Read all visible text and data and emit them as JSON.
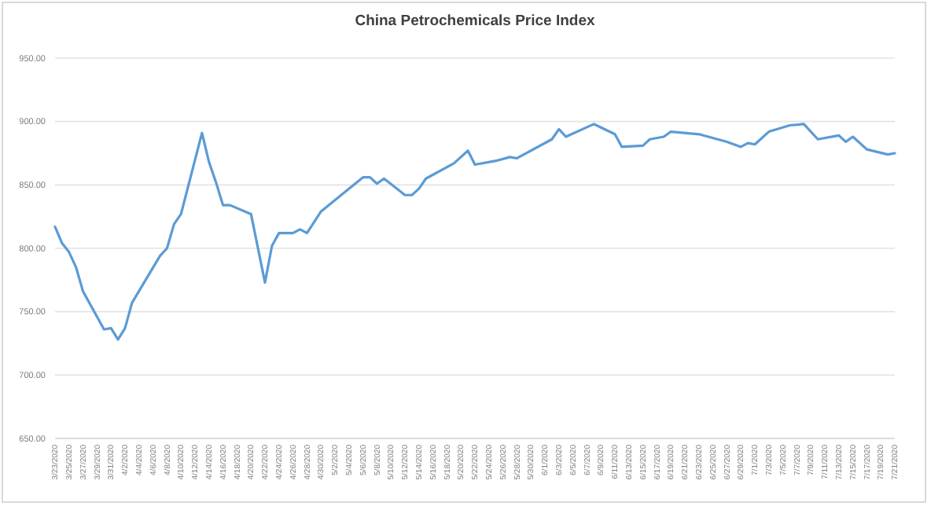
{
  "chart_data": {
    "type": "line",
    "title": "China Petrochemicals Price Index",
    "x": [
      "2020-03-23",
      "2020-03-24",
      "2020-03-25",
      "2020-03-26",
      "2020-03-27",
      "2020-03-30",
      "2020-03-31",
      "2020-04-01",
      "2020-04-02",
      "2020-04-03",
      "2020-04-07",
      "2020-04-08",
      "2020-04-09",
      "2020-04-10",
      "2020-04-13",
      "2020-04-14",
      "2020-04-15",
      "2020-04-16",
      "2020-04-17",
      "2020-04-20",
      "2020-04-22",
      "2020-04-23",
      "2020-04-24",
      "2020-04-26",
      "2020-04-27",
      "2020-04-28",
      "2020-04-30",
      "2020-05-06",
      "2020-05-07",
      "2020-05-08",
      "2020-05-09",
      "2020-05-12",
      "2020-05-13",
      "2020-05-14",
      "2020-05-15",
      "2020-05-19",
      "2020-05-21",
      "2020-05-22",
      "2020-05-25",
      "2020-05-27",
      "2020-05-28",
      "2020-06-02",
      "2020-06-03",
      "2020-06-04",
      "2020-06-08",
      "2020-06-11",
      "2020-06-12",
      "2020-06-15",
      "2020-06-16",
      "2020-06-18",
      "2020-06-19",
      "2020-06-23",
      "2020-06-27",
      "2020-06-29",
      "2020-06-30",
      "2020-07-01",
      "2020-07-03",
      "2020-07-06",
      "2020-07-08",
      "2020-07-10",
      "2020-07-13",
      "2020-07-14",
      "2020-07-15",
      "2020-07-17",
      "2020-07-20",
      "2020-07-21"
    ],
    "series": [
      {
        "color": "#5b9bd5",
        "values": [
          817,
          804,
          797,
          785,
          766,
          736,
          737,
          728,
          737,
          757,
          794,
          800,
          819,
          827,
          891,
          868,
          852,
          834,
          834,
          827,
          773,
          802,
          812,
          812,
          815,
          812,
          829,
          856,
          856,
          851,
          855,
          842,
          842,
          847,
          855,
          867,
          877,
          866,
          869,
          872,
          871,
          886,
          894,
          888,
          898,
          890,
          880,
          881,
          886,
          888,
          892,
          890,
          884,
          880,
          883,
          882,
          892,
          897,
          898,
          886,
          889,
          884,
          888,
          878,
          874,
          875
        ]
      }
    ],
    "xlim": [
      "2020-03-23",
      "2020-07-21"
    ],
    "xticks": [
      {
        "value": "2020-03-23",
        "label": "3/23/2020"
      },
      {
        "value": "2020-03-25",
        "label": "3/25/2020"
      },
      {
        "value": "2020-03-27",
        "label": "3/27/2020"
      },
      {
        "value": "2020-03-29",
        "label": "3/29/2020"
      },
      {
        "value": "2020-03-31",
        "label": "3/31/2020"
      },
      {
        "value": "2020-04-02",
        "label": "4/2/2020"
      },
      {
        "value": "2020-04-04",
        "label": "4/4/2020"
      },
      {
        "value": "2020-04-06",
        "label": "4/6/2020"
      },
      {
        "value": "2020-04-08",
        "label": "4/8/2020"
      },
      {
        "value": "2020-04-10",
        "label": "4/10/2020"
      },
      {
        "value": "2020-04-12",
        "label": "4/12/2020"
      },
      {
        "value": "2020-04-14",
        "label": "4/14/2020"
      },
      {
        "value": "2020-04-16",
        "label": "4/16/2020"
      },
      {
        "value": "2020-04-18",
        "label": "4/18/2020"
      },
      {
        "value": "2020-04-20",
        "label": "4/20/2020"
      },
      {
        "value": "2020-04-22",
        "label": "4/22/2020"
      },
      {
        "value": "2020-04-24",
        "label": "4/24/2020"
      },
      {
        "value": "2020-04-26",
        "label": "4/26/2020"
      },
      {
        "value": "2020-04-28",
        "label": "4/28/2020"
      },
      {
        "value": "2020-04-30",
        "label": "4/30/2020"
      },
      {
        "value": "2020-05-02",
        "label": "5/2/2020"
      },
      {
        "value": "2020-05-04",
        "label": "5/4/2020"
      },
      {
        "value": "2020-05-06",
        "label": "5/6/2020"
      },
      {
        "value": "2020-05-08",
        "label": "5/8/2020"
      },
      {
        "value": "2020-05-10",
        "label": "5/10/2020"
      },
      {
        "value": "2020-05-12",
        "label": "5/12/2020"
      },
      {
        "value": "2020-05-14",
        "label": "5/14/2020"
      },
      {
        "value": "2020-05-16",
        "label": "5/16/2020"
      },
      {
        "value": "2020-05-18",
        "label": "5/18/2020"
      },
      {
        "value": "2020-05-20",
        "label": "5/20/2020"
      },
      {
        "value": "2020-05-22",
        "label": "5/22/2020"
      },
      {
        "value": "2020-05-24",
        "label": "5/24/2020"
      },
      {
        "value": "2020-05-26",
        "label": "5/26/2020"
      },
      {
        "value": "2020-05-28",
        "label": "5/28/2020"
      },
      {
        "value": "2020-05-30",
        "label": "5/30/2020"
      },
      {
        "value": "2020-06-01",
        "label": "6/1/2020"
      },
      {
        "value": "2020-06-03",
        "label": "6/3/2020"
      },
      {
        "value": "2020-06-05",
        "label": "6/5/2020"
      },
      {
        "value": "2020-06-07",
        "label": "6/7/2020"
      },
      {
        "value": "2020-06-09",
        "label": "6/9/2020"
      },
      {
        "value": "2020-06-11",
        "label": "6/11/2020"
      },
      {
        "value": "2020-06-13",
        "label": "6/13/2020"
      },
      {
        "value": "2020-06-15",
        "label": "6/15/2020"
      },
      {
        "value": "2020-06-17",
        "label": "6/17/2020"
      },
      {
        "value": "2020-06-19",
        "label": "6/19/2020"
      },
      {
        "value": "2020-06-21",
        "label": "6/21/2020"
      },
      {
        "value": "2020-06-23",
        "label": "6/23/2020"
      },
      {
        "value": "2020-06-25",
        "label": "6/25/2020"
      },
      {
        "value": "2020-06-27",
        "label": "6/27/2020"
      },
      {
        "value": "2020-06-29",
        "label": "6/29/2020"
      },
      {
        "value": "2020-07-01",
        "label": "7/1/2020"
      },
      {
        "value": "2020-07-03",
        "label": "7/3/2020"
      },
      {
        "value": "2020-07-05",
        "label": "7/5/2020"
      },
      {
        "value": "2020-07-07",
        "label": "7/7/2020"
      },
      {
        "value": "2020-07-09",
        "label": "7/9/2020"
      },
      {
        "value": "2020-07-11",
        "label": "7/11/2020"
      },
      {
        "value": "2020-07-13",
        "label": "7/13/2020"
      },
      {
        "value": "2020-07-15",
        "label": "7/15/2020"
      },
      {
        "value": "2020-07-17",
        "label": "7/17/2020"
      },
      {
        "value": "2020-07-19",
        "label": "7/19/2020"
      },
      {
        "value": "2020-07-21",
        "label": "7/21/2020"
      }
    ],
    "ylim": [
      650,
      950
    ],
    "yticks": [
      {
        "value": 650,
        "label": "650.00"
      },
      {
        "value": 700,
        "label": "700.00"
      },
      {
        "value": 750,
        "label": "750.00"
      },
      {
        "value": 800,
        "label": "800.00"
      },
      {
        "value": 850,
        "label": "850.00"
      },
      {
        "value": 900,
        "label": "900.00"
      },
      {
        "value": 950,
        "label": "950.00"
      }
    ],
    "grid": "y",
    "marker": "none",
    "line_style": "solid"
  }
}
